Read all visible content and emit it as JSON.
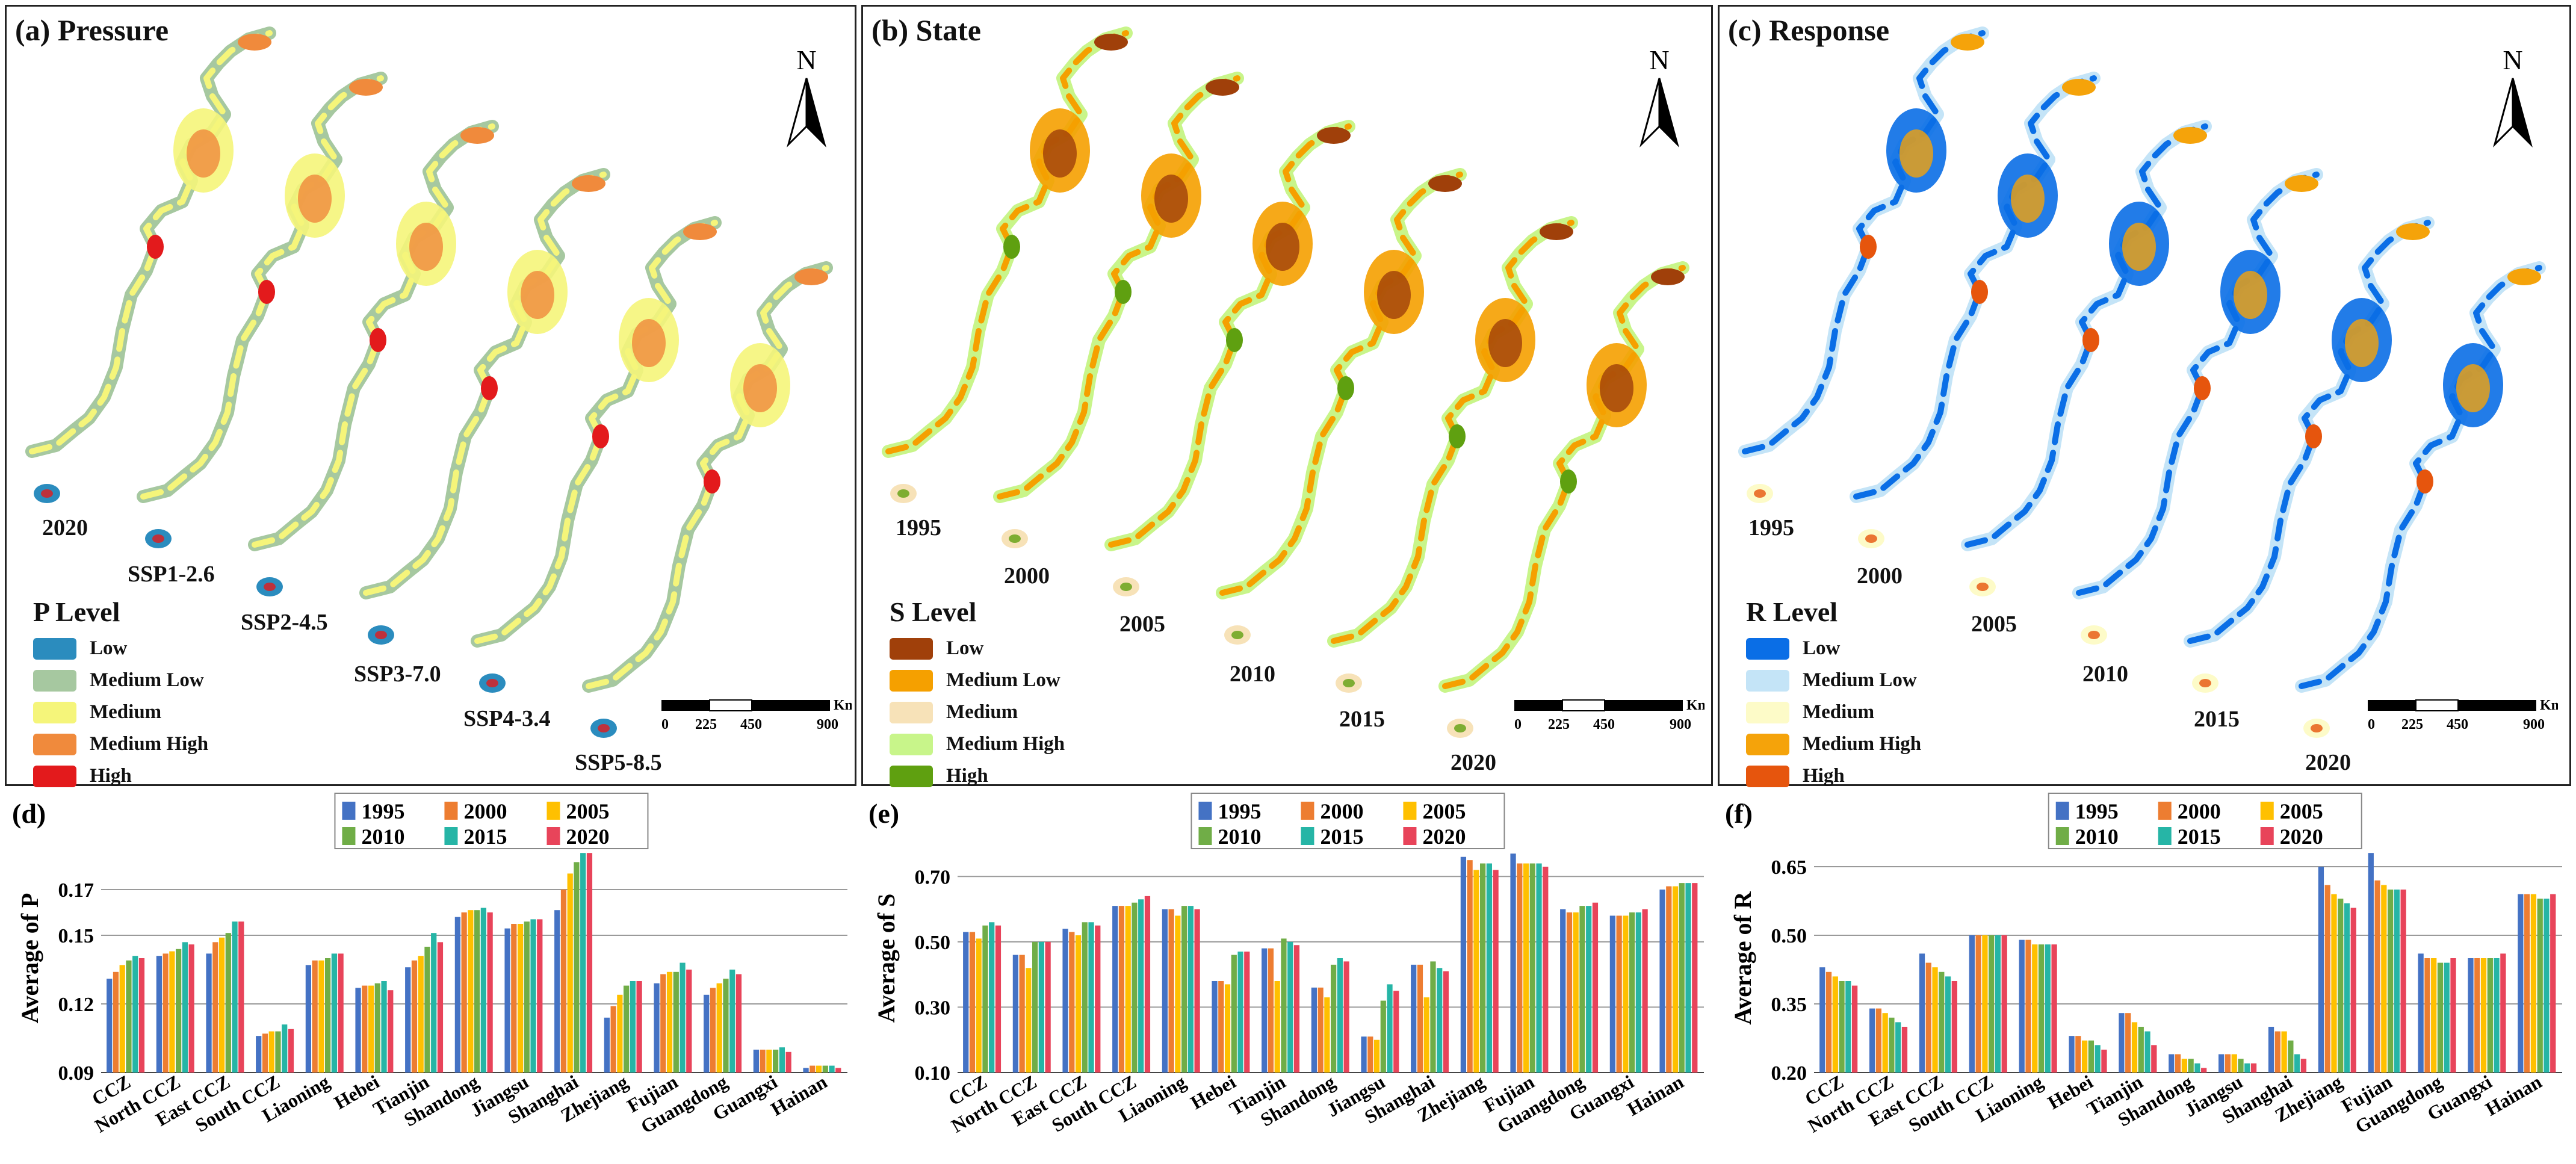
{
  "maps": [
    {
      "id": "a",
      "title": "(a) Pressure",
      "north": "N",
      "legend_title": "P  Level",
      "levels": [
        {
          "label": "Low",
          "color": "#2b8cbe"
        },
        {
          "label": "Medium Low",
          "color": "#a6c8a0"
        },
        {
          "label": "Medium",
          "color": "#f5f57a"
        },
        {
          "label": "Medium High",
          "color": "#f08a3c"
        },
        {
          "label": "High",
          "color": "#e31a1c"
        }
      ],
      "scenarios": [
        "2020",
        "SSP1-2.6",
        "SSP2-4.5",
        "SSP3-7.0",
        "SSP4-3.4",
        "SSP5-8.5"
      ],
      "scale": {
        "unit": "Km",
        "ticks": [
          "0",
          "225",
          "450",
          "900"
        ]
      }
    },
    {
      "id": "b",
      "title": "(b) State",
      "north": "N",
      "legend_title": "S  Level",
      "levels": [
        {
          "label": "Low",
          "color": "#a0400a"
        },
        {
          "label": "Medium Low",
          "color": "#f5a000"
        },
        {
          "label": "Medium",
          "color": "#f7e2b8"
        },
        {
          "label": "Medium High",
          "color": "#c8f58a"
        },
        {
          "label": "High",
          "color": "#5fa010"
        }
      ],
      "scenarios": [
        "1995",
        "2000",
        "2005",
        "2010",
        "2015",
        "2020"
      ],
      "scale": {
        "unit": "Km",
        "ticks": [
          "0",
          "225",
          "450",
          "900"
        ]
      }
    },
    {
      "id": "c",
      "title": "(c) Response",
      "north": "N",
      "legend_title": "R  Level",
      "levels": [
        {
          "label": "Low",
          "color": "#0a6ee6"
        },
        {
          "label": "Medium Low",
          "color": "#c4e4f7"
        },
        {
          "label": "Medium",
          "color": "#fdfbc8"
        },
        {
          "label": "Medium High",
          "color": "#f5a30a"
        },
        {
          "label": "High",
          "color": "#e6550d"
        }
      ],
      "scenarios": [
        "1995",
        "2000",
        "2005",
        "2010",
        "2015",
        "2020"
      ],
      "scale": {
        "unit": "Km",
        "ticks": [
          "0",
          "225",
          "450",
          "900"
        ]
      }
    }
  ],
  "chart_data": [
    {
      "type": "bar",
      "title": "(d)",
      "ylabel": "Average of P",
      "xlabel": "",
      "ylim": [
        0.09,
        0.19
      ],
      "yticks": [
        "0.09",
        "0.12",
        "0.15",
        "0.17"
      ],
      "ytick_values": [
        0.09,
        0.12,
        0.15,
        0.17
      ],
      "categories": [
        "CCZ",
        "North CCZ",
        "East CCZ",
        "South CCZ",
        "Liaoning",
        "Hebei",
        "Tianjin",
        "Shandong",
        "Jiangsu",
        "Shanghai",
        "Zhejiang",
        "Fujian",
        "Guangdong",
        "Guangxi",
        "Hainan"
      ],
      "series": [
        {
          "name": "1995",
          "color": "#4472c4",
          "values": [
            0.131,
            0.141,
            0.142,
            0.106,
            0.137,
            0.127,
            0.136,
            0.158,
            0.153,
            0.161,
            0.114,
            0.129,
            0.124,
            0.1,
            0.092
          ]
        },
        {
          "name": "2000",
          "color": "#ed7d31",
          "values": [
            0.134,
            0.142,
            0.147,
            0.107,
            0.139,
            0.128,
            0.139,
            0.16,
            0.155,
            0.17,
            0.119,
            0.133,
            0.127,
            0.1,
            0.093
          ]
        },
        {
          "name": "2005",
          "color": "#ffc000",
          "values": [
            0.137,
            0.143,
            0.149,
            0.108,
            0.139,
            0.128,
            0.141,
            0.161,
            0.155,
            0.177,
            0.124,
            0.134,
            0.129,
            0.1,
            0.093
          ]
        },
        {
          "name": "2010",
          "color": "#70ad47",
          "values": [
            0.139,
            0.144,
            0.151,
            0.108,
            0.14,
            0.129,
            0.145,
            0.161,
            0.156,
            0.182,
            0.128,
            0.134,
            0.131,
            0.1,
            0.093
          ]
        },
        {
          "name": "2015",
          "color": "#26b5a6",
          "values": [
            0.141,
            0.147,
            0.156,
            0.111,
            0.142,
            0.13,
            0.151,
            0.162,
            0.157,
            0.186,
            0.13,
            0.138,
            0.135,
            0.101,
            0.093
          ]
        },
        {
          "name": "2020",
          "color": "#e8445a",
          "values": [
            0.14,
            0.146,
            0.156,
            0.109,
            0.142,
            0.126,
            0.147,
            0.16,
            0.157,
            0.186,
            0.13,
            0.135,
            0.133,
            0.099,
            0.092
          ]
        }
      ]
    },
    {
      "type": "bar",
      "title": "(e)",
      "ylabel": "Average of S",
      "xlabel": "",
      "ylim": [
        0.1,
        0.8
      ],
      "yticks": [
        "0.10",
        "0.30",
        "0.50",
        "0.70"
      ],
      "ytick_values": [
        0.1,
        0.3,
        0.5,
        0.7
      ],
      "categories": [
        "CCZ",
        "North CCZ",
        "East CCZ",
        "South CCZ",
        "Liaoning",
        "Hebei",
        "Tianjin",
        "Shandong",
        "Jiangsu",
        "Shanghai",
        "Zhejiang",
        "Fujian",
        "Guangdong",
        "Guangxi",
        "Hainan"
      ],
      "series": [
        {
          "name": "1995",
          "color": "#4472c4",
          "values": [
            0.53,
            0.46,
            0.54,
            0.61,
            0.6,
            0.38,
            0.48,
            0.36,
            0.21,
            0.43,
            0.76,
            0.77,
            0.6,
            0.58,
            0.66
          ]
        },
        {
          "name": "2000",
          "color": "#ed7d31",
          "values": [
            0.53,
            0.46,
            0.53,
            0.61,
            0.6,
            0.38,
            0.48,
            0.36,
            0.21,
            0.43,
            0.75,
            0.74,
            0.59,
            0.58,
            0.67
          ]
        },
        {
          "name": "2005",
          "color": "#ffc000",
          "values": [
            0.51,
            0.42,
            0.52,
            0.61,
            0.58,
            0.37,
            0.38,
            0.33,
            0.2,
            0.33,
            0.72,
            0.74,
            0.59,
            0.58,
            0.67
          ]
        },
        {
          "name": "2010",
          "color": "#70ad47",
          "values": [
            0.55,
            0.5,
            0.56,
            0.62,
            0.61,
            0.46,
            0.51,
            0.43,
            0.32,
            0.44,
            0.74,
            0.74,
            0.61,
            0.59,
            0.68
          ]
        },
        {
          "name": "2015",
          "color": "#26b5a6",
          "values": [
            0.56,
            0.5,
            0.56,
            0.63,
            0.61,
            0.47,
            0.5,
            0.45,
            0.37,
            0.42,
            0.74,
            0.74,
            0.61,
            0.59,
            0.68
          ]
        },
        {
          "name": "2020",
          "color": "#e8445a",
          "values": [
            0.55,
            0.5,
            0.55,
            0.64,
            0.6,
            0.47,
            0.49,
            0.44,
            0.35,
            0.41,
            0.72,
            0.73,
            0.62,
            0.6,
            0.68
          ]
        }
      ]
    },
    {
      "type": "bar",
      "title": "(f)",
      "ylabel": "Average of R",
      "xlabel": "",
      "ylim": [
        0.2,
        0.7
      ],
      "yticks": [
        "0.20",
        "0.35",
        "0.50",
        "0.65"
      ],
      "ytick_values": [
        0.2,
        0.35,
        0.5,
        0.65
      ],
      "categories": [
        "CCZ",
        "North CCZ",
        "East CCZ",
        "South CCZ",
        "Liaoning",
        "Hebei",
        "Tianjin",
        "Shandong",
        "Jiangsu",
        "Shanghai",
        "Zhejiang",
        "Fujian",
        "Guangdong",
        "Guangxi",
        "Hainan"
      ],
      "series": [
        {
          "name": "1995",
          "color": "#4472c4",
          "values": [
            0.43,
            0.34,
            0.46,
            0.5,
            0.49,
            0.28,
            0.33,
            0.24,
            0.24,
            0.3,
            0.65,
            0.68,
            0.46,
            0.45,
            0.59
          ]
        },
        {
          "name": "2000",
          "color": "#ed7d31",
          "values": [
            0.42,
            0.34,
            0.44,
            0.5,
            0.49,
            0.28,
            0.33,
            0.24,
            0.24,
            0.29,
            0.61,
            0.62,
            0.45,
            0.45,
            0.59
          ]
        },
        {
          "name": "2005",
          "color": "#ffc000",
          "values": [
            0.41,
            0.33,
            0.43,
            0.5,
            0.48,
            0.27,
            0.31,
            0.23,
            0.24,
            0.29,
            0.59,
            0.61,
            0.45,
            0.45,
            0.59
          ]
        },
        {
          "name": "2010",
          "color": "#70ad47",
          "values": [
            0.4,
            0.32,
            0.42,
            0.5,
            0.48,
            0.27,
            0.3,
            0.23,
            0.23,
            0.27,
            0.58,
            0.6,
            0.44,
            0.45,
            0.58
          ]
        },
        {
          "name": "2015",
          "color": "#26b5a6",
          "values": [
            0.4,
            0.31,
            0.41,
            0.5,
            0.48,
            0.26,
            0.29,
            0.22,
            0.22,
            0.24,
            0.57,
            0.6,
            0.44,
            0.45,
            0.58
          ]
        },
        {
          "name": "2020",
          "color": "#e8445a",
          "values": [
            0.39,
            0.3,
            0.4,
            0.5,
            0.48,
            0.25,
            0.26,
            0.21,
            0.22,
            0.23,
            0.56,
            0.6,
            0.45,
            0.46,
            0.59
          ]
        }
      ]
    }
  ]
}
